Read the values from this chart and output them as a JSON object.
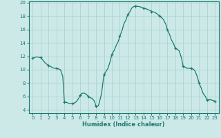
{
  "title": "",
  "xlabel": "Humidex (Indice chaleur)",
  "background_color": "#cce9e8",
  "grid_color": "#aad4d3",
  "line_color": "#1a7a6e",
  "marker_color": "#1a7a6e",
  "xlim": [
    -0.5,
    23.5
  ],
  "ylim": [
    3.5,
    20.2
  ],
  "yticks": [
    4,
    6,
    8,
    10,
    12,
    14,
    16,
    18,
    20
  ],
  "xticks": [
    0,
    1,
    2,
    3,
    4,
    5,
    6,
    7,
    8,
    9,
    10,
    11,
    12,
    13,
    14,
    15,
    16,
    17,
    18,
    19,
    20,
    21,
    22,
    23
  ],
  "x": [
    0,
    0.3,
    0.5,
    0.8,
    1.0,
    1.3,
    1.5,
    1.7,
    2.0,
    2.3,
    2.5,
    2.8,
    3.0,
    3.3,
    3.5,
    3.8,
    4.0,
    4.3,
    4.5,
    4.7,
    5.0,
    5.3,
    5.5,
    5.8,
    6.0,
    6.2,
    6.5,
    6.8,
    7.0,
    7.2,
    7.5,
    7.8,
    8.0,
    8.3,
    8.5,
    8.7,
    9.0,
    9.3,
    9.5,
    9.8,
    10.0,
    10.3,
    10.5,
    10.8,
    11.0,
    11.3,
    11.5,
    11.8,
    12.0,
    12.3,
    12.5,
    12.8,
    13.0,
    13.3,
    13.5,
    13.8,
    14.0,
    14.3,
    14.5,
    14.8,
    15.0,
    15.3,
    15.5,
    15.8,
    16.0,
    16.3,
    16.5,
    16.8,
    17.0,
    17.3,
    17.5,
    17.8,
    18.0,
    18.3,
    18.5,
    18.8,
    19.0,
    19.3,
    19.5,
    19.8,
    20.0,
    20.3,
    20.5,
    20.8,
    21.0,
    21.3,
    21.5,
    21.8,
    22.0,
    22.3,
    22.5,
    22.8,
    23.0
  ],
  "y": [
    11.7,
    11.85,
    11.9,
    11.85,
    11.8,
    11.4,
    11.1,
    10.9,
    10.6,
    10.45,
    10.3,
    10.2,
    10.2,
    10.1,
    10.0,
    9.0,
    5.2,
    5.1,
    5.0,
    4.95,
    4.9,
    5.05,
    5.2,
    5.7,
    6.2,
    6.45,
    6.5,
    6.3,
    6.0,
    5.85,
    5.7,
    5.3,
    4.5,
    4.6,
    5.5,
    6.5,
    9.3,
    9.8,
    10.2,
    11.3,
    12.3,
    12.9,
    13.5,
    14.2,
    15.0,
    15.9,
    16.8,
    17.5,
    18.2,
    18.7,
    19.2,
    19.45,
    19.5,
    19.45,
    19.4,
    19.3,
    19.2,
    19.1,
    19.0,
    18.85,
    18.7,
    18.6,
    18.5,
    18.25,
    18.0,
    17.75,
    17.5,
    16.8,
    16.0,
    15.2,
    14.5,
    13.85,
    13.2,
    13.0,
    12.8,
    11.7,
    10.5,
    10.35,
    10.2,
    10.2,
    10.2,
    10.05,
    9.8,
    8.9,
    8.0,
    7.2,
    6.5,
    6.0,
    5.5,
    5.5,
    5.5,
    5.4,
    5.3
  ],
  "marker_x": [
    0,
    1,
    2,
    3,
    4,
    5,
    6,
    7,
    8,
    9,
    10,
    11,
    12,
    13,
    14,
    15,
    16,
    17,
    18,
    19,
    20,
    21,
    22,
    23
  ],
  "marker_y": [
    11.7,
    11.8,
    10.6,
    10.2,
    5.2,
    4.9,
    6.2,
    6.0,
    4.5,
    9.3,
    12.3,
    15.0,
    18.2,
    19.5,
    19.2,
    18.7,
    18.0,
    16.0,
    13.2,
    10.5,
    10.2,
    8.0,
    5.5,
    5.3
  ],
  "xlabel_fontsize": 6.0,
  "tick_fontsize": 5.0
}
